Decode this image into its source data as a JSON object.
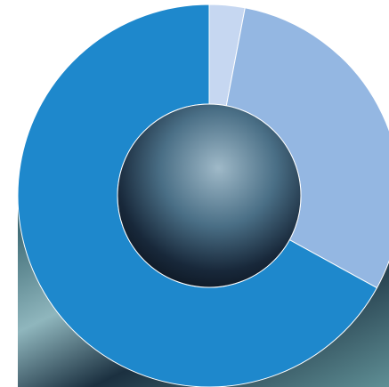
{
  "chart_data": {
    "type": "donut",
    "values": [
      3,
      30,
      67
    ],
    "colors": [
      "#c6d7f1",
      "#94b7e2",
      "#1e88cc"
    ]
  }
}
